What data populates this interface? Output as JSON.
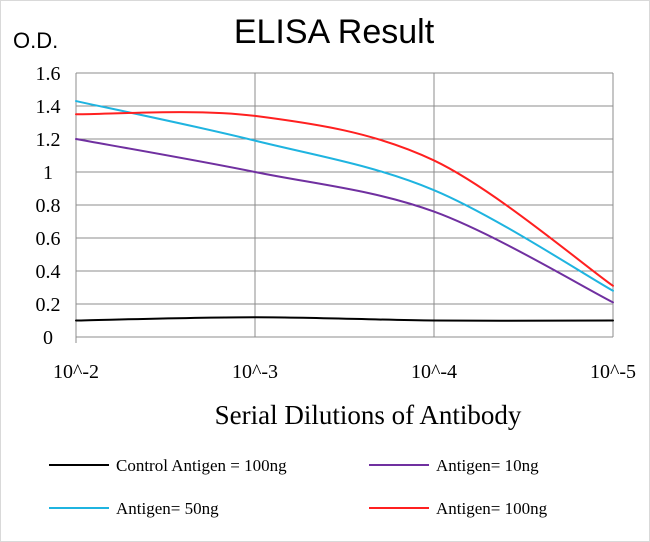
{
  "chart_data": {
    "type": "line",
    "title": "ELISA Result",
    "ylabel": "O.D.",
    "xlabel": "Serial Dilutions of Antibody",
    "categories": [
      "10^-2",
      "10^-3",
      "10^-4",
      "10^-5"
    ],
    "yticks": [
      "0",
      "0.2",
      "0.4",
      "0.6",
      "0.8",
      "1",
      "1.2",
      "1.4",
      "1.6"
    ],
    "ylim": [
      0,
      1.6
    ],
    "grid": true,
    "legend_position": "bottom",
    "series": [
      {
        "name": "Control Antigen = 100ng",
        "color": "#000000",
        "values": [
          0.1,
          0.12,
          0.1,
          0.1
        ]
      },
      {
        "name": "Antigen= 10ng",
        "color": "#7030a0",
        "values": [
          1.2,
          1.0,
          0.76,
          0.21
        ]
      },
      {
        "name": "Antigen= 50ng",
        "color": "#1fb4e0",
        "values": [
          1.43,
          1.19,
          0.89,
          0.28
        ]
      },
      {
        "name": "Antigen= 100ng",
        "color": "#ff2020",
        "values": [
          1.35,
          1.34,
          1.07,
          0.31
        ]
      }
    ]
  }
}
